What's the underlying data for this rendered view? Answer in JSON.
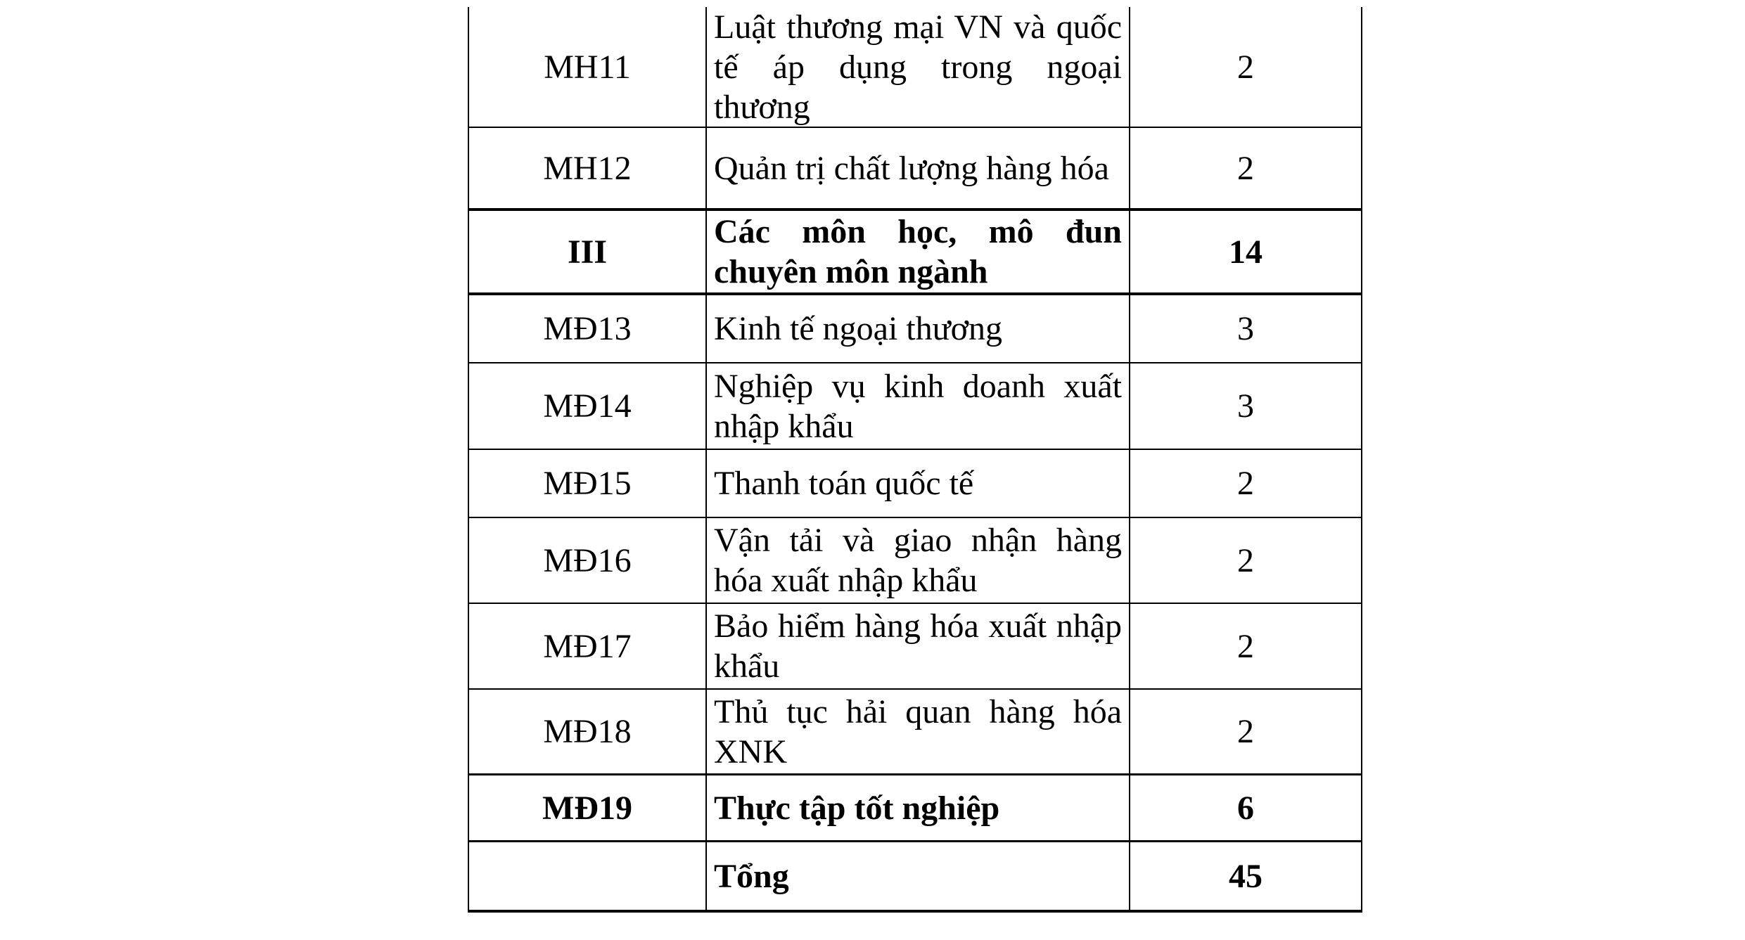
{
  "page": {
    "background_color": "#ffffff",
    "text_color": "#000000",
    "description": "Cropped curriculum table (Vietnamese), serif document style"
  },
  "table": {
    "columns": {
      "code": "code",
      "subject": "subject",
      "credits": "credits"
    },
    "rows": [
      {
        "code": "MH11",
        "subject": "Luật thương mại VN và quốc tế áp dụng trong ngoại thương",
        "credits": "2",
        "bold": false
      },
      {
        "code": "MH12",
        "subject": "Quản trị chất lượng hàng hóa",
        "credits": "2",
        "bold": false
      },
      {
        "code": "III",
        "subject": "Các môn học, mô đun chuyên môn ngành",
        "credits": "14",
        "bold": true
      },
      {
        "code": "MĐ13",
        "subject": "Kinh tế ngoại thương",
        "credits": "3",
        "bold": false
      },
      {
        "code": "MĐ14",
        "subject": "Nghiệp vụ kinh doanh xuất nhập khẩu",
        "credits": "3",
        "bold": false
      },
      {
        "code": "MĐ15",
        "subject": "Thanh toán quốc tế",
        "credits": "2",
        "bold": false
      },
      {
        "code": "MĐ16",
        "subject": "Vận tải và giao nhận hàng hóa xuất nhập khẩu",
        "credits": "2",
        "bold": false
      },
      {
        "code": "MĐ17",
        "subject": "Bảo hiểm hàng hóa xuất nhập khẩu",
        "credits": "2",
        "bold": false
      },
      {
        "code": "MĐ18",
        "subject": "Thủ tục hải quan hàng hóa XNK",
        "credits": "2",
        "bold": false
      },
      {
        "code": "MĐ19",
        "subject": "Thực tập tốt nghiệp",
        "credits": "6",
        "bold": true
      },
      {
        "code": "",
        "subject": "Tổng",
        "credits": "45",
        "bold": true
      }
    ]
  }
}
